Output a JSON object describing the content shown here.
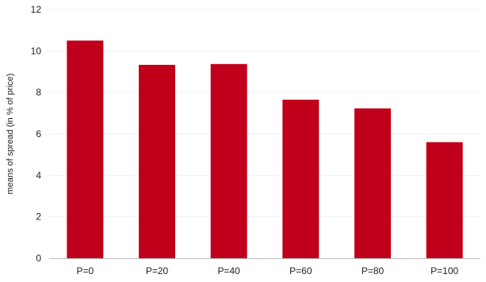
{
  "chart_data": {
    "type": "bar",
    "categories": [
      "P=0",
      "P=20",
      "P=40",
      "P=60",
      "P=80",
      "P=100"
    ],
    "values": [
      10.5,
      9.33,
      9.37,
      7.65,
      7.23,
      5.6
    ],
    "ylabel": "means of spread (in % of price)",
    "ylim": [
      0,
      12
    ],
    "yticks": [
      0,
      2,
      4,
      6,
      8,
      10,
      12
    ],
    "grid": true,
    "legend": "none",
    "bar_color": "#c0001b"
  }
}
